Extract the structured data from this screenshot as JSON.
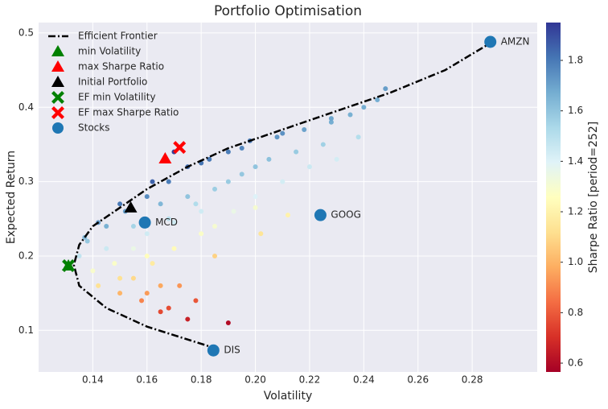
{
  "chart_data": {
    "type": "scatter",
    "title": "Portfolio Optimisation",
    "x_label": "Volatility",
    "y_label": "Expected Return",
    "xlim": [
      0.12,
      0.304
    ],
    "ylim": [
      0.044,
      0.514
    ],
    "xticks": [
      0.14,
      0.16,
      0.18,
      {
        "value": 0.2,
        "label": "0.20"
      },
      0.22,
      0.24,
      0.26,
      0.28
    ],
    "yticks": [
      0.1,
      0.2,
      0.3,
      0.4,
      0.5
    ],
    "grid": true,
    "legend": "upper left",
    "colorbar": {
      "label": "Sharpe Ratio [period=252]",
      "lim": [
        0.565,
        1.95
      ],
      "ticks": [
        0.6,
        0.8,
        {
          "value": 1,
          "label": "1.0"
        },
        1.2,
        1.4,
        1.6,
        1.8
      ],
      "colormap": [
        "#a50026",
        "#d73027",
        "#f46d43",
        "#fdae61",
        "#fee090",
        "#ffffbf",
        "#e0f3f8",
        "#abd9e9",
        "#74add1",
        "#4575b4",
        "#313695"
      ]
    },
    "portfolios": {
      "x": [
        0.135,
        0.138,
        0.14,
        0.142,
        0.145,
        0.148,
        0.15,
        0.152,
        0.155,
        0.155,
        0.158,
        0.16,
        0.16,
        0.162,
        0.165,
        0.168,
        0.168,
        0.17,
        0.172,
        0.175,
        0.175,
        0.178,
        0.18,
        0.183,
        0.185,
        0.185,
        0.19,
        0.19,
        0.192,
        0.195,
        0.198,
        0.2,
        0.202,
        0.205,
        0.208,
        0.21,
        0.212,
        0.215,
        0.218,
        0.22,
        0.225,
        0.228,
        0.23,
        0.235,
        0.238,
        0.24,
        0.245,
        0.248,
        0.17,
        0.162,
        0.15,
        0.142,
        0.137,
        0.18,
        0.195,
        0.21,
        0.228,
        0.19,
        0.2,
        0.175,
        0.165,
        0.155,
        0.145,
        0.17,
        0.18,
        0.16,
        0.15,
        0.165,
        0.178,
        0.168,
        0.16,
        0.2,
        0.185
      ],
      "y": [
        0.2,
        0.22,
        0.18,
        0.16,
        0.24,
        0.19,
        0.15,
        0.26,
        0.21,
        0.17,
        0.14,
        0.28,
        0.23,
        0.19,
        0.125,
        0.3,
        0.25,
        0.21,
        0.16,
        0.115,
        0.32,
        0.27,
        0.23,
        0.33,
        0.29,
        0.2,
        0.11,
        0.34,
        0.26,
        0.31,
        0.355,
        0.28,
        0.23,
        0.33,
        0.36,
        0.3,
        0.255,
        0.34,
        0.37,
        0.32,
        0.35,
        0.38,
        0.33,
        0.39,
        0.36,
        0.4,
        0.41,
        0.425,
        0.34,
        0.3,
        0.27,
        0.245,
        0.225,
        0.325,
        0.345,
        0.365,
        0.385,
        0.3,
        0.32,
        0.28,
        0.27,
        0.24,
        0.21,
        0.245,
        0.26,
        0.2,
        0.17,
        0.16,
        0.14,
        0.13,
        0.15,
        0.265,
        0.24
      ],
      "sharpe": [
        1.48,
        1.59,
        1.29,
        1.13,
        1.66,
        1.28,
        1.0,
        1.71,
        1.35,
        1.1,
        0.89,
        1.75,
        1.44,
        1.17,
        0.76,
        1.79,
        1.49,
        1.24,
        0.93,
        0.66,
        1.83,
        1.52,
        1.28,
        1.8,
        1.57,
        1.08,
        0.6,
        1.79,
        1.35,
        1.59,
        1.79,
        1.4,
        1.14,
        1.61,
        1.73,
        1.43,
        1.2,
        1.58,
        1.7,
        1.45,
        1.56,
        1.67,
        1.43,
        1.66,
        1.51,
        1.67,
        1.67,
        1.71,
        1.93,
        1.85,
        1.8,
        1.72,
        1.64,
        1.81,
        1.77,
        1.74,
        1.69,
        1.58,
        1.6,
        1.6,
        1.64,
        1.55,
        1.45,
        1.44,
        1.44,
        1.25,
        1.13,
        0.97,
        0.79,
        0.77,
        0.94,
        1.3,
        1.3
      ]
    },
    "frontier": {
      "name": "Efficient Frontier",
      "color": "#000000",
      "x": [
        0.186,
        0.16,
        0.145,
        0.135,
        0.133,
        0.135,
        0.14,
        0.15,
        0.16,
        0.175,
        0.19,
        0.21,
        0.23,
        0.25,
        0.27,
        0.287
      ],
      "y": [
        0.075,
        0.105,
        0.13,
        0.16,
        0.188,
        0.215,
        0.24,
        0.265,
        0.29,
        0.32,
        0.345,
        0.37,
        0.395,
        0.42,
        0.45,
        0.487
      ]
    },
    "markers": [
      {
        "name": "min Volatility",
        "marker": "triangle",
        "color": "#008000",
        "x": 0.131,
        "y": 0.187
      },
      {
        "name": "max Sharpe Ratio",
        "marker": "triangle",
        "color": "#ff0000",
        "x": 0.1667,
        "y": 0.331
      },
      {
        "name": "Initial Portfolio",
        "marker": "triangle",
        "color": "#000000",
        "x": 0.154,
        "y": 0.265
      },
      {
        "name": "EF min Volatility",
        "marker": "x",
        "color": "#008000",
        "x": 0.131,
        "y": 0.187
      },
      {
        "name": "EF max Sharpe Ratio",
        "marker": "x",
        "color": "#ff0000",
        "x": 0.172,
        "y": 0.346
      }
    ],
    "stocks": {
      "name": "Stocks",
      "color": "#1f77b4",
      "labels": [
        "AMZN",
        "GOOG",
        "MCD",
        "DIS"
      ],
      "x": [
        0.2867,
        0.224,
        0.1592,
        0.1845
      ],
      "y": [
        0.488,
        0.255,
        0.245,
        0.073
      ]
    }
  }
}
